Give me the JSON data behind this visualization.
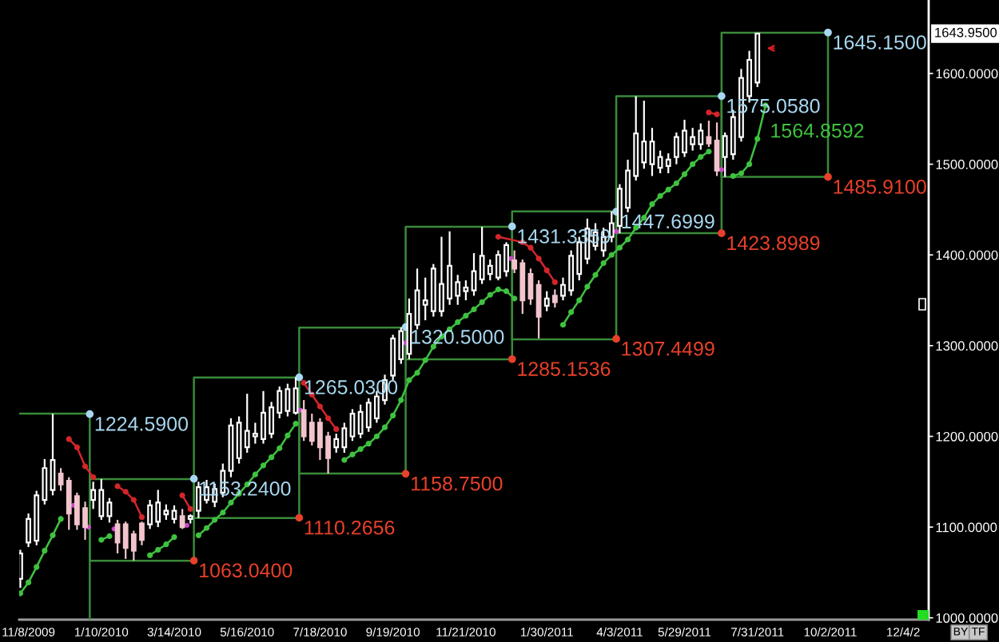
{
  "chart_data": {
    "type": "candlestick",
    "x": [
      "2009-11-01",
      "2009-11-08",
      "2009-11-15",
      "2009-11-22",
      "2009-11-29",
      "2009-12-06",
      "2009-12-13",
      "2009-12-20",
      "2009-12-27",
      "2010-01-03",
      "2010-01-10",
      "2010-01-17",
      "2010-01-24",
      "2010-01-31",
      "2010-02-07",
      "2010-02-14",
      "2010-02-21",
      "2010-02-28",
      "2010-03-07",
      "2010-03-14",
      "2010-03-21",
      "2010-03-28",
      "2010-04-04",
      "2010-04-11",
      "2010-04-18",
      "2010-04-25",
      "2010-05-02",
      "2010-05-09",
      "2010-05-16",
      "2010-05-23",
      "2010-05-30",
      "2010-06-06",
      "2010-06-13",
      "2010-06-20",
      "2010-06-27",
      "2010-07-04",
      "2010-07-11",
      "2010-07-18",
      "2010-07-25",
      "2010-08-01",
      "2010-08-08",
      "2010-08-15",
      "2010-08-22",
      "2010-08-29",
      "2010-09-05",
      "2010-09-12",
      "2010-09-19",
      "2010-09-26",
      "2010-10-03",
      "2010-10-10",
      "2010-10-17",
      "2010-10-24",
      "2010-10-31",
      "2010-11-07",
      "2010-11-14",
      "2010-11-21",
      "2010-11-28",
      "2010-12-05",
      "2010-12-12",
      "2010-12-19",
      "2010-12-26",
      "2011-01-02",
      "2011-01-09",
      "2011-01-16",
      "2011-01-23",
      "2011-01-30",
      "2011-02-06",
      "2011-02-13",
      "2011-02-20",
      "2011-02-27",
      "2011-03-06",
      "2011-03-13",
      "2011-03-20",
      "2011-03-27",
      "2011-04-03",
      "2011-04-10",
      "2011-04-17",
      "2011-04-24",
      "2011-05-01",
      "2011-05-08",
      "2011-05-15",
      "2011-05-22",
      "2011-05-29",
      "2011-06-05",
      "2011-06-12",
      "2011-06-19",
      "2011-06-26",
      "2011-07-03",
      "2011-07-10",
      "2011-07-17",
      "2011-07-24",
      "2011-07-31"
    ],
    "ohlc": [
      [
        1043,
        1075,
        1033,
        1071
      ],
      [
        1083,
        1115,
        1078,
        1109
      ],
      [
        1085,
        1140,
        1080,
        1135
      ],
      [
        1130,
        1175,
        1125,
        1165
      ],
      [
        1141,
        1225,
        1135,
        1174
      ],
      [
        1159,
        1165,
        1140,
        1147
      ],
      [
        1151,
        1155,
        1097,
        1115
      ],
      [
        1134,
        1138,
        1097,
        1103
      ],
      [
        1121,
        1128,
        1086,
        1100
      ],
      [
        1130,
        1150,
        1120,
        1141
      ],
      [
        1112,
        1153,
        1108,
        1141
      ],
      [
        1112,
        1132,
        1105,
        1127
      ],
      [
        1103,
        1108,
        1071,
        1083
      ],
      [
        1103,
        1106,
        1065,
        1077
      ],
      [
        1092,
        1096,
        1063,
        1074
      ],
      [
        1104,
        1106,
        1080,
        1086
      ],
      [
        1103,
        1130,
        1098,
        1124
      ],
      [
        1106,
        1141,
        1100,
        1127
      ],
      [
        1114,
        1125,
        1108,
        1118
      ],
      [
        1109,
        1124,
        1104,
        1118
      ],
      [
        1112,
        1120,
        1098,
        1100
      ],
      [
        1109,
        1114,
        1104,
        1112
      ],
      [
        1118,
        1150,
        1110,
        1144
      ],
      [
        1130,
        1152,
        1126,
        1144
      ],
      [
        1128,
        1148,
        1122,
        1142
      ],
      [
        1138,
        1170,
        1133,
        1162
      ],
      [
        1162,
        1220,
        1155,
        1212
      ],
      [
        1176,
        1222,
        1170,
        1215
      ],
      [
        1188,
        1247,
        1182,
        1206
      ],
      [
        1200,
        1215,
        1192,
        1203
      ],
      [
        1197,
        1250,
        1192,
        1226
      ],
      [
        1203,
        1238,
        1198,
        1232
      ],
      [
        1226,
        1255,
        1220,
        1250
      ],
      [
        1228,
        1258,
        1222,
        1252
      ],
      [
        1226,
        1265,
        1224,
        1253
      ],
      [
        1229,
        1240,
        1195,
        1200
      ],
      [
        1215,
        1225,
        1190,
        1195
      ],
      [
        1215,
        1220,
        1174,
        1188
      ],
      [
        1200,
        1205,
        1159,
        1176
      ],
      [
        1188,
        1203,
        1182,
        1197
      ],
      [
        1188,
        1215,
        1182,
        1209
      ],
      [
        1200,
        1230,
        1195,
        1225
      ],
      [
        1203,
        1235,
        1198,
        1227
      ],
      [
        1210,
        1242,
        1205,
        1237
      ],
      [
        1220,
        1250,
        1215,
        1244
      ],
      [
        1240,
        1268,
        1235,
        1262
      ],
      [
        1267,
        1312,
        1262,
        1308
      ],
      [
        1285,
        1320,
        1280,
        1316
      ],
      [
        1291,
        1352,
        1285,
        1335
      ],
      [
        1323,
        1385,
        1318,
        1361
      ],
      [
        1345,
        1375,
        1328,
        1350
      ],
      [
        1338,
        1390,
        1332,
        1385
      ],
      [
        1338,
        1420,
        1332,
        1368
      ],
      [
        1352,
        1426,
        1345,
        1388
      ],
      [
        1355,
        1378,
        1345,
        1370
      ],
      [
        1360,
        1372,
        1350,
        1364
      ],
      [
        1361,
        1402,
        1355,
        1382
      ],
      [
        1373,
        1431,
        1368,
        1399
      ],
      [
        1379,
        1395,
        1372,
        1388
      ],
      [
        1375,
        1405,
        1372,
        1400
      ],
      [
        1382,
        1414,
        1376,
        1411
      ],
      [
        1394,
        1405,
        1380,
        1385
      ],
      [
        1391,
        1395,
        1335,
        1350
      ],
      [
        1379,
        1385,
        1345,
        1352
      ],
      [
        1367,
        1372,
        1308,
        1332
      ],
      [
        1344,
        1360,
        1338,
        1352
      ],
      [
        1355,
        1362,
        1342,
        1348
      ],
      [
        1355,
        1375,
        1350,
        1367
      ],
      [
        1361,
        1405,
        1355,
        1399
      ],
      [
        1379,
        1420,
        1372,
        1414
      ],
      [
        1396,
        1440,
        1390,
        1429
      ],
      [
        1410,
        1435,
        1405,
        1425
      ],
      [
        1405,
        1430,
        1398,
        1420
      ],
      [
        1420,
        1448,
        1414,
        1435
      ],
      [
        1432,
        1478,
        1424,
        1473
      ],
      [
        1452,
        1505,
        1447,
        1493
      ],
      [
        1487,
        1575,
        1482,
        1534
      ],
      [
        1502,
        1570,
        1495,
        1525
      ],
      [
        1500,
        1540,
        1487,
        1525
      ],
      [
        1496,
        1515,
        1490,
        1508
      ],
      [
        1498,
        1512,
        1490,
        1505
      ],
      [
        1508,
        1535,
        1500,
        1530
      ],
      [
        1513,
        1549,
        1508,
        1537
      ],
      [
        1522,
        1540,
        1515,
        1530
      ],
      [
        1522,
        1545,
        1516,
        1537
      ],
      [
        1530,
        1548,
        1519,
        1523
      ],
      [
        1526,
        1546,
        1487,
        1493
      ],
      [
        1508,
        1535,
        1486,
        1531
      ],
      [
        1511,
        1560,
        1505,
        1552
      ],
      [
        1530,
        1605,
        1525,
        1595
      ],
      [
        1575,
        1625,
        1568,
        1615
      ],
      [
        1590,
        1645,
        1585,
        1643.95
      ]
    ],
    "colors": [
      "#ffffff",
      "#ffffff",
      "#ffffff",
      "#ffffff",
      "#ffffff",
      "#f2c4cc",
      "#f2c4cc",
      "#f2c4cc",
      "#f2c4cc",
      "#ffffff",
      "#ffffff",
      "#ffffff",
      "#f2c4cc",
      "#f2c4cc",
      "#f2c4cc",
      "#f2c4cc",
      "#ffffff",
      "#ffffff",
      "#ffffff",
      "#ffffff",
      "#f2c4cc",
      "#ffffff",
      "#ffffff",
      "#ffffff",
      "#ffffff",
      "#ffffff",
      "#ffffff",
      "#ffffff",
      "#ffffff",
      "#ffffff",
      "#ffffff",
      "#ffffff",
      "#ffffff",
      "#ffffff",
      "#ffffff",
      "#f2c4cc",
      "#f2c4cc",
      "#f2c4cc",
      "#f2c4cc",
      "#ffffff",
      "#ffffff",
      "#ffffff",
      "#ffffff",
      "#ffffff",
      "#ffffff",
      "#ffffff",
      "#ffffff",
      "#ffffff",
      "#ffffff",
      "#ffffff",
      "#ffffff",
      "#ffffff",
      "#ffffff",
      "#ffffff",
      "#ffffff",
      "#ffffff",
      "#ffffff",
      "#ffffff",
      "#ffffff",
      "#ffffff",
      "#ffffff",
      "#f2c4cc",
      "#f2c4cc",
      "#f2c4cc",
      "#f2c4cc",
      "#ffffff",
      "#f2c4cc",
      "#ffffff",
      "#ffffff",
      "#ffffff",
      "#ffffff",
      "#ffffff",
      "#ffffff",
      "#ffffff",
      "#ffffff",
      "#ffffff",
      "#ffffff",
      "#ffffff",
      "#ffffff",
      "#ffffff",
      "#ffffff",
      "#ffffff",
      "#ffffff",
      "#ffffff",
      "#ffffff",
      "#f2c4cc",
      "#f2c4cc",
      "#ffffff",
      "#ffffff",
      "#ffffff",
      "#ffffff",
      "#ffffff"
    ],
    "xlim": [
      "2009-10-31",
      "2011-12-26"
    ],
    "xticks": [
      {
        "value": "2009-11-08",
        "label": "11/8/2009"
      },
      {
        "value": "2010-01-10",
        "label": "1/10/2010"
      },
      {
        "value": "2010-03-14",
        "label": "3/14/2010"
      },
      {
        "value": "2010-05-16",
        "label": "5/16/2010"
      },
      {
        "value": "2010-07-18",
        "label": "7/18/2010"
      },
      {
        "value": "2010-09-19",
        "label": "9/19/2010"
      },
      {
        "value": "2010-11-21",
        "label": "11/21/2010"
      },
      {
        "value": "2011-01-30",
        "label": "1/30/2011"
      },
      {
        "value": "2011-04-03",
        "label": "4/3/2011"
      },
      {
        "value": "2011-05-29",
        "label": "5/29/2011"
      },
      {
        "value": "2011-07-31",
        "label": "7/31/2011"
      },
      {
        "value": "2011-10-02",
        "label": "10/2/2011"
      },
      {
        "value": "2011-12-04",
        "label": "12/4/2"
      }
    ],
    "ylim": [
      998,
      1681
    ],
    "yticks": [
      {
        "value": 1000,
        "label": "1000.0000"
      },
      {
        "value": 1100,
        "label": "1100.0000"
      },
      {
        "value": 1200,
        "label": "1200.0000"
      },
      {
        "value": 1300,
        "label": "1300.0000"
      },
      {
        "value": 1400,
        "label": "1400.0000"
      },
      {
        "value": 1500,
        "label": "1500.0000"
      },
      {
        "value": 1600,
        "label": "1600.0000"
      }
    ],
    "series": [
      {
        "type": "line",
        "color": "#3a8a3a",
        "x": [
          "2009-10-31",
          "2009-12-31",
          "2009-12-31"
        ],
        "values": [
          1225,
          1225,
          998
        ]
      },
      {
        "type": "line",
        "color": "#3a8a3a",
        "x": [
          "2009-12-31",
          "2009-12-31",
          "2010-03-31",
          "2010-03-31"
        ],
        "values": [
          1063,
          1153,
          1153,
          1063
        ]
      },
      {
        "type": "line",
        "color": "#3a8a3a",
        "x": [
          "2010-03-31",
          "2010-03-31",
          "2010-06-30",
          "2010-06-30"
        ],
        "values": [
          1110,
          1265,
          1265,
          1110
        ]
      },
      {
        "type": "line",
        "color": "#3a8a3a",
        "x": [
          "2010-06-30",
          "2010-06-30",
          "2010-09-30",
          "2010-09-30"
        ],
        "values": [
          1159,
          1320,
          1320,
          1159
        ]
      },
      {
        "type": "line",
        "color": "#3a8a3a",
        "x": [
          "2010-09-30",
          "2010-09-30",
          "2010-12-31",
          "2010-12-31"
        ],
        "values": [
          1285,
          1431,
          1431,
          1285
        ]
      },
      {
        "type": "line",
        "color": "#3a8a3a",
        "x": [
          "2010-12-31",
          "2010-12-31",
          "2011-03-31",
          "2011-03-31"
        ],
        "values": [
          1307,
          1448,
          1448,
          1307
        ]
      },
      {
        "type": "line",
        "color": "#3a8a3a",
        "x": [
          "2011-03-31",
          "2011-03-31",
          "2011-06-30",
          "2011-06-30"
        ],
        "values": [
          1424,
          1575,
          1575,
          1424
        ]
      },
      {
        "type": "line",
        "color": "#3a8a3a",
        "x": [
          "2011-06-30",
          "2011-06-30",
          "2011-09-30",
          "2011-09-30"
        ],
        "values": [
          1486,
          1645,
          1645,
          1486
        ]
      },
      {
        "type": "line",
        "color": "#3a8a3a",
        "x": [
          "2009-12-31",
          "2010-03-31"
        ],
        "values": [
          1063,
          1063
        ]
      },
      {
        "type": "line",
        "color": "#3a8a3a",
        "x": [
          "2010-03-31",
          "2010-06-30"
        ],
        "values": [
          1110,
          1110
        ]
      },
      {
        "type": "line",
        "color": "#3a8a3a",
        "x": [
          "2010-06-30",
          "2010-09-30"
        ],
        "values": [
          1159,
          1159
        ]
      },
      {
        "type": "line",
        "color": "#3a8a3a",
        "x": [
          "2010-09-30",
          "2010-12-31"
        ],
        "values": [
          1285,
          1285
        ]
      },
      {
        "type": "line",
        "color": "#3a8a3a",
        "x": [
          "2010-12-31",
          "2011-03-31"
        ],
        "values": [
          1307,
          1307
        ]
      },
      {
        "type": "line",
        "color": "#3a8a3a",
        "x": [
          "2011-03-31",
          "2011-06-30"
        ],
        "values": [
          1424,
          1424
        ]
      },
      {
        "type": "line",
        "color": "#3a8a3a",
        "x": [
          "2011-06-30",
          "2011-09-30"
        ],
        "values": [
          1486,
          1486
        ]
      },
      {
        "type": "line",
        "color": "#3fc23f",
        "marker": "circle",
        "x": [
          "2009-11-01",
          "2009-11-08",
          "2009-11-15",
          "2009-11-22",
          "2009-11-29",
          "2009-12-06"
        ],
        "values": [
          1027,
          1039,
          1056,
          1074,
          1091,
          1109
        ]
      },
      {
        "type": "line",
        "color": "#3fc23f",
        "marker": "circle",
        "x": [
          "2010-01-10",
          "2010-01-17"
        ],
        "values": [
          1086,
          1090
        ]
      },
      {
        "type": "line",
        "color": "#3fc23f",
        "marker": "circle",
        "x": [
          "2010-02-21",
          "2010-02-28",
          "2010-03-07",
          "2010-03-14"
        ],
        "values": [
          1069,
          1075,
          1081,
          1089
        ]
      },
      {
        "type": "line",
        "color": "#3fc23f",
        "marker": "circle",
        "x": [
          "2010-04-04",
          "2010-04-11",
          "2010-04-18",
          "2010-04-25",
          "2010-05-02",
          "2010-05-09",
          "2010-05-16",
          "2010-05-23",
          "2010-05-30",
          "2010-06-06",
          "2010-06-13",
          "2010-06-20",
          "2010-06-27"
        ],
        "values": [
          1091,
          1099,
          1108,
          1116,
          1127,
          1137,
          1147,
          1158,
          1168,
          1177,
          1187,
          1201,
          1214
        ]
      },
      {
        "type": "line",
        "color": "#3fc23f",
        "marker": "circle",
        "x": [
          "2010-08-08",
          "2010-08-15",
          "2010-08-22",
          "2010-08-29",
          "2010-09-05",
          "2010-09-12",
          "2010-09-19",
          "2010-09-26",
          "2010-10-03",
          "2010-10-10",
          "2010-10-17",
          "2010-10-24",
          "2010-10-31",
          "2010-11-07",
          "2010-11-14",
          "2010-11-21",
          "2010-11-28",
          "2010-12-05",
          "2010-12-12",
          "2010-12-19",
          "2010-12-26",
          "2011-01-02"
        ],
        "values": [
          1174,
          1180,
          1186,
          1192,
          1200,
          1210,
          1223,
          1240,
          1262,
          1270,
          1284,
          1299,
          1310,
          1318,
          1326,
          1333,
          1340,
          1348,
          1356,
          1362,
          1360,
          1352
        ]
      },
      {
        "type": "line",
        "color": "#3fc23f",
        "marker": "circle",
        "x": [
          "2011-02-13",
          "2011-02-20",
          "2011-02-27",
          "2011-03-06",
          "2011-03-13",
          "2011-03-20",
          "2011-03-27",
          "2011-04-03",
          "2011-04-10",
          "2011-04-17",
          "2011-04-24",
          "2011-05-01",
          "2011-05-08",
          "2011-05-15",
          "2011-05-22",
          "2011-05-29",
          "2011-06-05",
          "2011-06-12",
          "2011-06-19"
        ],
        "values": [
          1323,
          1337,
          1350,
          1365,
          1378,
          1391,
          1400,
          1408,
          1417,
          1430,
          1441,
          1456,
          1465,
          1472,
          1479,
          1489,
          1500,
          1508,
          1514
        ]
      },
      {
        "type": "line",
        "color": "#3fc23f",
        "marker": "circle",
        "x": [
          "2011-07-10",
          "2011-07-17",
          "2011-07-24",
          "2011-07-31",
          "2011-08-07"
        ],
        "values": [
          1487,
          1490,
          1500,
          1528,
          1564.8592
        ],
        "value_labels": [
          null,
          null,
          null,
          null,
          "1564.8592"
        ]
      },
      {
        "type": "line",
        "color": "#d3262a",
        "marker": "circle",
        "x": [
          "2009-12-13",
          "2009-12-20",
          "2009-12-27",
          "2010-01-03"
        ],
        "values": [
          1197,
          1188,
          1167,
          1155
        ]
      },
      {
        "type": "line",
        "color": "#d3262a",
        "marker": "circle",
        "x": [
          "2010-01-24",
          "2010-01-31",
          "2010-02-07",
          "2010-02-14"
        ],
        "values": [
          1145,
          1139,
          1130,
          1111
        ]
      },
      {
        "type": "line",
        "color": "#d3262a",
        "marker": "circle",
        "x": [
          "2010-03-21",
          "2010-03-28"
        ],
        "values": [
          1135,
          1120
        ]
      },
      {
        "type": "line",
        "color": "#d3262a",
        "marker": "circle",
        "x": [
          "2010-07-04",
          "2010-07-11",
          "2010-07-18",
          "2010-07-25",
          "2010-08-01"
        ],
        "values": [
          1259,
          1246,
          1233,
          1220,
          1208
        ]
      },
      {
        "type": "line",
        "color": "#d3262a",
        "marker": "circle",
        "x": [
          "2010-12-19",
          "2011-01-09",
          "2011-01-16",
          "2011-01-23",
          "2011-01-30",
          "2011-02-06"
        ],
        "values": [
          1420,
          1414,
          1408,
          1396,
          1383,
          1370
        ]
      },
      {
        "type": "line",
        "color": "#d3262a",
        "marker": "circle",
        "x": [
          "2011-06-19",
          "2011-06-26"
        ],
        "values": [
          1557,
          1555
        ]
      },
      {
        "type": "scatter",
        "color": "#c848c8",
        "marker": "circle",
        "x": [
          "2009-12-17",
          "2009-12-30",
          "2010-01-21",
          "2010-03-25",
          "2010-07-01",
          "2010-09-30",
          "2010-12-30",
          "2011-03-31",
          "2011-06-30"
        ],
        "values": [
          1124,
          1100,
          1098,
          1102,
          1229,
          1303,
          1396,
          1426,
          1494
        ]
      },
      {
        "type": "scatter",
        "color": "#a8d8f0",
        "marker": "circle",
        "x": [
          "2009-12-31",
          "2010-03-31",
          "2010-06-30",
          "2010-09-30",
          "2010-12-31",
          "2011-03-31",
          "2011-06-30",
          "2011-09-30"
        ],
        "values": [
          1224.59,
          1153.24,
          1265.03,
          1320.5,
          1431.3359,
          1447.6999,
          1575.058,
          1645.15
        ],
        "value_labels": [
          "1224.5900",
          "1153.2400",
          "1265.0300",
          "1320.5000",
          "1431.3359",
          "1447.6999",
          "1575.0580",
          "1645.1500"
        ]
      },
      {
        "type": "scatter",
        "color": "#e8402a",
        "marker": "circle",
        "x": [
          "2010-03-31",
          "2010-06-30",
          "2010-09-30",
          "2010-12-31",
          "2011-03-31",
          "2011-06-30",
          "2011-09-30"
        ],
        "values": [
          1063.04,
          1110.2656,
          1158.75,
          1285.1536,
          1307.4499,
          1423.8989,
          1485.91
        ],
        "value_labels": [
          "1063.0400",
          "1110.2656",
          "1158.7500",
          "1285.1536",
          "1307.4499",
          "1423.8989",
          "1485.9100"
        ]
      }
    ],
    "annotations": [
      "1643.9500",
      "BY",
      "TF"
    ]
  }
}
